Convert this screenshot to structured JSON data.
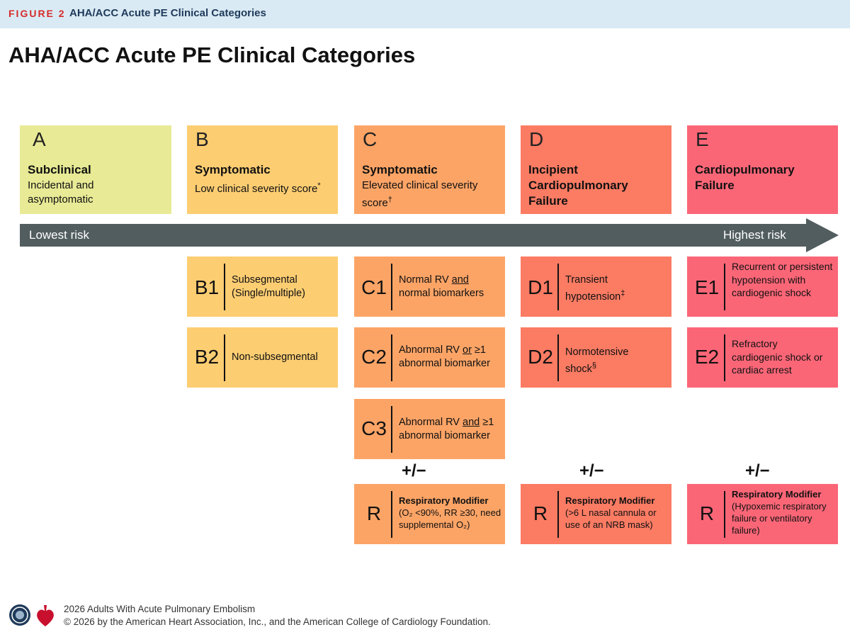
{
  "header": {
    "figure_label": "FIGURE 2",
    "caption": "AHA/ACC Acute PE Clinical Categories"
  },
  "title": "AHA/ACC Acute PE Clinical Categories",
  "categories": [
    {
      "letter": "A",
      "heading": "Subclinical",
      "sub": "Incidental and asymptomatic",
      "mark": ""
    },
    {
      "letter": "B",
      "heading": "Symptomatic",
      "sub": "Low clinical severity score",
      "mark": "*"
    },
    {
      "letter": "C",
      "heading": "Symptomatic",
      "sub": "Elevated clinical severity score",
      "mark": "†"
    },
    {
      "letter": "D",
      "heading": "Incipient Cardiopulmonary Failure",
      "sub": "",
      "mark": ""
    },
    {
      "letter": "E",
      "heading": "Cardiopulmonary Failure",
      "sub": "",
      "mark": ""
    }
  ],
  "risk_scale": {
    "low_label": "Lowest risk",
    "high_label": "Highest risk"
  },
  "subcategories": {
    "B1": {
      "code": "B1",
      "text": "Subsegmental (Single/multiple)"
    },
    "B2": {
      "code": "B2",
      "text": "Non-subsegmental"
    },
    "C1": {
      "code": "C1",
      "pre": "Normal RV ",
      "emph": "and",
      "post": " normal biomarkers"
    },
    "C2": {
      "code": "C2",
      "pre": "Abnormal RV ",
      "emph": "or",
      "post": " ≥1 abnormal biomarker"
    },
    "C3": {
      "code": "C3",
      "pre": "Abnormal RV ",
      "emph": "and",
      "post": " ≥1 abnormal biomarker"
    },
    "D1": {
      "code": "D1",
      "text": "Transient hypotension",
      "mark": "‡"
    },
    "D2": {
      "code": "D2",
      "text": "Normotensive shock",
      "mark": "§"
    },
    "E1": {
      "code": "E1",
      "text": "Recurrent or persistent hypotension with cardiogenic shock"
    },
    "E2": {
      "code": "E2",
      "text": "Refractory cardiogenic shock or cardiac arrest"
    }
  },
  "plus_minus": "+/−",
  "respiratory_modifiers": [
    {
      "code": "R",
      "title": "Respiratory Modifier",
      "detail": "(O₂ <90%, RR ≥30, need supplemental O₂)"
    },
    {
      "code": "R",
      "title": "Respiratory Modifier",
      "detail": "(>6 L nasal cannula or use of an NRB mask)"
    },
    {
      "code": "R",
      "title": "Respiratory Modifier",
      "detail": "(Hypoxemic respiratory failure or ventilatory failure)"
    }
  ],
  "footer": {
    "line1": "2026 Adults With Acute Pulmonary Embolism",
    "line2": "© 2026 by the American Heart Association, Inc., and the American College of Cardiology Foundation."
  },
  "colors": {
    "A": "#e8ea95",
    "B": "#fdcd72",
    "C": "#fca466",
    "D": "#fb7b63",
    "E": "#fb6677",
    "arrow": "#525d5f",
    "header_bg": "#d9eaf4",
    "figure_label": "#d62a2a"
  },
  "icons": [
    "aha-seal-icon",
    "heart-torch-icon"
  ]
}
